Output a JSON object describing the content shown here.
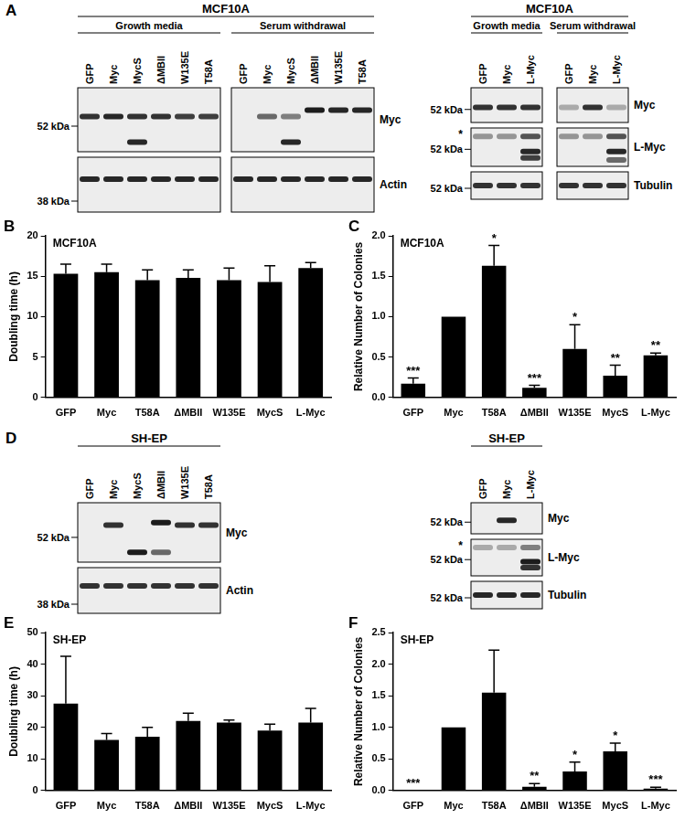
{
  "chart_data": [
    {
      "panel": "B",
      "type": "bar",
      "cell_line": "MCF10A",
      "y_label": "Doubling time (h)",
      "categories": [
        "GFP",
        "Myc",
        "T58A",
        "ΔMBII",
        "W135E",
        "MycS",
        "L-Myc"
      ],
      "values": [
        15.3,
        15.5,
        14.5,
        14.8,
        14.5,
        14.3,
        16.0
      ],
      "errors": [
        1.2,
        1.0,
        1.3,
        1.0,
        1.5,
        2.0,
        0.7
      ],
      "color": "#000000",
      "ylim": [
        0,
        20
      ],
      "yticks": [
        0,
        5,
        10,
        15,
        20
      ],
      "grid": false
    },
    {
      "panel": "C",
      "type": "bar",
      "cell_line": "MCF10A",
      "y_label": "Relative Number of Colonies",
      "categories": [
        "GFP",
        "Myc",
        "T58A",
        "ΔMBII",
        "W135E",
        "MycS",
        "L-Myc"
      ],
      "values": [
        0.17,
        1.0,
        1.63,
        0.12,
        0.6,
        0.27,
        0.52
      ],
      "errors": [
        0.07,
        null,
        0.25,
        0.03,
        0.3,
        0.13,
        0.03
      ],
      "significance": [
        "***",
        null,
        "*",
        "***",
        "*",
        "**",
        "**"
      ],
      "color": "#000000",
      "ylim": [
        0,
        2
      ],
      "yticks": [
        {
          "value": 0,
          "label": "0.0"
        },
        0.5,
        {
          "value": 1,
          "label": "1.0"
        },
        1.5,
        {
          "value": 2,
          "label": "2.0"
        }
      ],
      "grid": false
    },
    {
      "panel": "E",
      "type": "bar",
      "cell_line": "SH-EP",
      "y_label": "Doubling time (h)",
      "categories": [
        "GFP",
        "Myc",
        "T58A",
        "ΔMBII",
        "W135E",
        "MycS",
        "L-Myc"
      ],
      "values": [
        27.5,
        16.0,
        17.0,
        22.0,
        21.5,
        19.0,
        21.5
      ],
      "errors": [
        15.0,
        2.0,
        3.0,
        2.5,
        0.8,
        2.0,
        4.5
      ],
      "color": "#000000",
      "ylim": [
        0,
        50
      ],
      "yticks": [
        0,
        10,
        20,
        30,
        40,
        50
      ],
      "grid": false
    },
    {
      "panel": "F",
      "type": "bar",
      "cell_line": "SH-EP",
      "y_label": "Relative Number of Colonies",
      "categories": [
        "GFP",
        "Myc",
        "T58A",
        "ΔMBII",
        "W135E",
        "MycS",
        "L-Myc"
      ],
      "values": [
        0.0,
        1.0,
        1.55,
        0.06,
        0.3,
        0.62,
        0.03
      ],
      "errors": [
        null,
        null,
        0.67,
        0.05,
        0.15,
        0.13,
        0.02
      ],
      "significance": [
        "***",
        null,
        null,
        "**",
        "*",
        "*",
        "***"
      ],
      "color": "#000000",
      "ylim": [
        0,
        2.5
      ],
      "yticks": [
        {
          "value": 0,
          "label": "0.0"
        },
        0.5,
        {
          "value": 1,
          "label": "1.0"
        },
        1.5,
        {
          "value": 2,
          "label": "2.0"
        },
        2.5
      ],
      "grid": false
    }
  ],
  "blots": [
    {
      "panel": "A",
      "title": "MCF10A",
      "groups": [
        {
          "label": "Growth media",
          "lanes": [
            "GFP",
            "Myc",
            "MycS",
            "ΔMBII",
            "W135E",
            "T58A"
          ]
        },
        {
          "label": "Serum withdrawal",
          "lanes": [
            "GFP",
            "Myc",
            "MycS",
            "ΔMBII",
            "W135E",
            "T58A"
          ]
        }
      ],
      "rows": [
        {
          "label": "Myc",
          "kda_range": [
            64,
            44
          ],
          "markers": [
            {
              "kda": 52,
              "label": "52 kDa"
            }
          ],
          "bands": [
            [
              [
                {
                  "kda": 55,
                  "strength": 0.85
                }
              ],
              [
                {
                  "kda": 55,
                  "strength": 0.9
                }
              ],
              [
                {
                  "kda": 55,
                  "strength": 0.85
                },
                {
                  "kda": 47,
                  "strength": 0.9
                }
              ],
              [
                {
                  "kda": 55,
                  "strength": 0.85
                }
              ],
              [
                {
                  "kda": 55,
                  "strength": 0.8
                }
              ],
              [
                {
                  "kda": 55,
                  "strength": 0.8
                }
              ]
            ],
            [
              [],
              [
                {
                  "kda": 55,
                  "strength": 0.6
                }
              ],
              [
                {
                  "kda": 55,
                  "strength": 0.5
                },
                {
                  "kda": 47,
                  "strength": 0.9
                }
              ],
              [
                {
                  "kda": 57,
                  "strength": 0.95
                }
              ],
              [
                {
                  "kda": 57,
                  "strength": 0.9
                }
              ],
              [
                {
                  "kda": 57,
                  "strength": 0.9
                }
              ]
            ]
          ]
        },
        {
          "label": "Actin",
          "kda_range": [
            46,
            36
          ],
          "markers": [
            {
              "kda": 38,
              "label": "38 kDa"
            }
          ],
          "bands": [
            [
              [
                {
                  "kda": 42,
                  "strength": 0.9
                }
              ],
              [
                {
                  "kda": 42,
                  "strength": 0.9
                }
              ],
              [
                {
                  "kda": 42,
                  "strength": 0.9
                }
              ],
              [
                {
                  "kda": 42,
                  "strength": 0.9
                }
              ],
              [
                {
                  "kda": 42,
                  "strength": 0.9
                }
              ],
              [
                {
                  "kda": 42,
                  "strength": 0.9
                }
              ]
            ],
            [
              [
                {
                  "kda": 42,
                  "strength": 0.9
                }
              ],
              [
                {
                  "kda": 42,
                  "strength": 0.9
                }
              ],
              [
                {
                  "kda": 42,
                  "strength": 0.9
                }
              ],
              [
                {
                  "kda": 42,
                  "strength": 0.9
                }
              ],
              [
                {
                  "kda": 42,
                  "strength": 0.9
                }
              ],
              [
                {
                  "kda": 42,
                  "strength": 0.9
                }
              ]
            ]
          ]
        }
      ]
    },
    {
      "title": "MCF10A",
      "groups": [
        {
          "label": "Growth media",
          "lanes": [
            "GFP",
            "Myc",
            "L-Myc"
          ]
        },
        {
          "label": "Serum withdrawal",
          "lanes": [
            "GFP",
            "Myc",
            "L-Myc"
          ]
        }
      ],
      "rows": [
        {
          "label": "Myc",
          "kda_range": [
            62,
            46
          ],
          "markers": [
            {
              "kda": 52,
              "label": "52 kDa"
            }
          ],
          "bands": [
            [
              [
                {
                  "kda": 53,
                  "strength": 0.85
                }
              ],
              [
                {
                  "kda": 53,
                  "strength": 0.85
                }
              ],
              [
                {
                  "kda": 53,
                  "strength": 0.85
                }
              ]
            ],
            [
              [
                {
                  "kda": 53,
                  "strength": 0.3
                }
              ],
              [
                {
                  "kda": 53,
                  "strength": 0.85
                }
              ],
              [
                {
                  "kda": 53,
                  "strength": 0.3
                }
              ]
            ]
          ]
        },
        {
          "label": "L-Myc",
          "kda_range": [
            62,
            44
          ],
          "markers": [
            {
              "kda": 52,
              "label": "52 kDa"
            }
          ],
          "annotation": {
            "text": "*",
            "kda": 59
          },
          "bands": [
            [
              [
                {
                  "kda": 58,
                  "strength": 0.4
                }
              ],
              [
                {
                  "kda": 58,
                  "strength": 0.4
                }
              ],
              [
                {
                  "kda": 58,
                  "strength": 0.7
                },
                {
                  "kda": 51,
                  "strength": 0.9
                },
                {
                  "kda": 48,
                  "strength": 0.8
                }
              ]
            ],
            [
              [
                {
                  "kda": 58,
                  "strength": 0.4
                }
              ],
              [
                {
                  "kda": 58,
                  "strength": 0.4
                }
              ],
              [
                {
                  "kda": 58,
                  "strength": 0.7
                },
                {
                  "kda": 51,
                  "strength": 0.9
                },
                {
                  "kda": 47,
                  "strength": 0.6
                }
              ]
            ]
          ]
        },
        {
          "label": "Tubulin",
          "kda_range": [
            58,
            48
          ],
          "markers": [
            {
              "kda": 52,
              "label": "52 kDa"
            }
          ],
          "bands": [
            [
              [
                {
                  "kda": 53,
                  "strength": 0.85
                }
              ],
              [
                {
                  "kda": 53,
                  "strength": 0.85
                }
              ],
              [
                {
                  "kda": 53,
                  "strength": 0.85
                }
              ]
            ],
            [
              [
                {
                  "kda": 53,
                  "strength": 0.85
                }
              ],
              [
                {
                  "kda": 53,
                  "strength": 0.85
                }
              ],
              [
                {
                  "kda": 53,
                  "strength": 0.85
                }
              ]
            ]
          ]
        }
      ]
    },
    {
      "panel": "D",
      "title": "SH-EP",
      "groups": [
        {
          "lanes": [
            "GFP",
            "Myc",
            "MycS",
            "ΔMBII",
            "W135E",
            "T58A"
          ]
        }
      ],
      "rows": [
        {
          "label": "Myc",
          "kda_range": [
            66,
            42
          ],
          "markers": [
            {
              "kda": 52,
              "label": "52 kDa"
            }
          ],
          "bands": [
            [
              [],
              [
                {
                  "kda": 57,
                  "strength": 0.85
                }
              ],
              [
                {
                  "kda": 46,
                  "strength": 0.95
                }
              ],
              [
                {
                  "kda": 58,
                  "strength": 0.95
                },
                {
                  "kda": 46,
                  "strength": 0.6
                }
              ],
              [
                {
                  "kda": 57,
                  "strength": 0.85
                }
              ],
              [
                {
                  "kda": 57,
                  "strength": 0.85
                }
              ]
            ]
          ]
        },
        {
          "label": "Actin",
          "kda_range": [
            46,
            36
          ],
          "markers": [
            {
              "kda": 38,
              "label": "38 kDa"
            }
          ],
          "bands": [
            [
              [
                {
                  "kda": 42,
                  "strength": 0.85
                }
              ],
              [
                {
                  "kda": 42,
                  "strength": 0.85
                }
              ],
              [
                {
                  "kda": 42,
                  "strength": 0.85
                }
              ],
              [
                {
                  "kda": 42,
                  "strength": 0.85
                }
              ],
              [
                {
                  "kda": 42,
                  "strength": 0.85
                }
              ],
              [
                {
                  "kda": 42,
                  "strength": 0.85
                }
              ]
            ]
          ]
        }
      ]
    },
    {
      "title": "SH-EP",
      "groups": [
        {
          "lanes": [
            "GFP",
            "Myc",
            "L-Myc"
          ]
        }
      ],
      "rows": [
        {
          "label": "Myc",
          "kda_range": [
            62,
            46
          ],
          "markers": [
            {
              "kda": 52,
              "label": "52 kDa"
            }
          ],
          "bands": [
            [
              [],
              [
                {
                  "kda": 53,
                  "strength": 0.9
                }
              ],
              []
            ]
          ]
        },
        {
          "label": "L-Myc",
          "kda_range": [
            62,
            44
          ],
          "markers": [
            {
              "kda": 52,
              "label": "52 kDa"
            }
          ],
          "annotation": {
            "text": "*",
            "kda": 59
          },
          "bands": [
            [
              [
                {
                  "kda": 58,
                  "strength": 0.3
                }
              ],
              [
                {
                  "kda": 58,
                  "strength": 0.3
                }
              ],
              [
                {
                  "kda": 58,
                  "strength": 0.5
                },
                {
                  "kda": 51,
                  "strength": 0.95
                },
                {
                  "kda": 48,
                  "strength": 0.85
                }
              ]
            ]
          ]
        },
        {
          "label": "Tubulin",
          "kda_range": [
            58,
            48
          ],
          "markers": [
            {
              "kda": 52,
              "label": "52 kDa"
            }
          ],
          "bands": [
            [
              [
                {
                  "kda": 53,
                  "strength": 0.9
                }
              ],
              [
                {
                  "kda": 53,
                  "strength": 0.9
                }
              ],
              [
                {
                  "kda": 53,
                  "strength": 0.9
                }
              ]
            ]
          ]
        }
      ]
    }
  ]
}
